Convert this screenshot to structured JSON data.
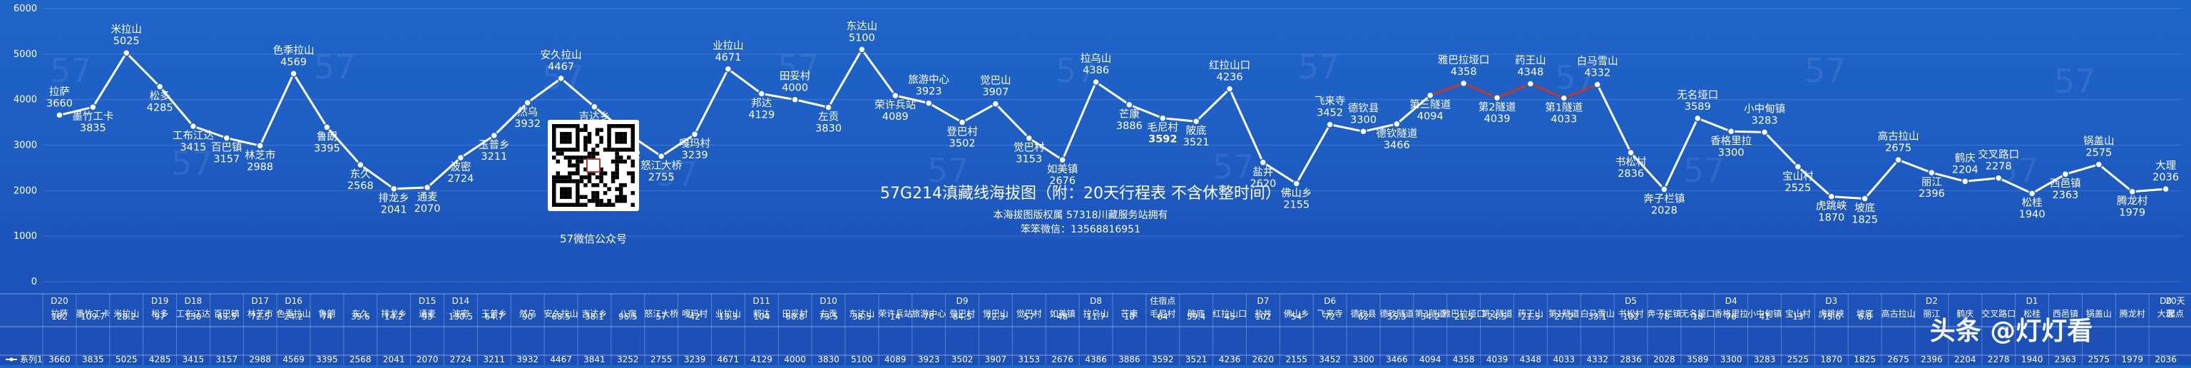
{
  "chart_data": {
    "type": "line",
    "title": "57G214滇藏线海拔图（附：20天行程表 不含休整时间）",
    "copyright": "本海拔图版权属 57318川藏服务站拥有",
    "wechat": "笨笨微信：13568816951",
    "qr_label": "57微信公众号",
    "watermark_text": "57",
    "corner_watermark": "头条 @灯灯看",
    "ylim": [
      0,
      6000
    ],
    "yticks": [
      "0",
      "1000",
      "2000",
      "3000",
      "4000",
      "5000",
      "6000"
    ],
    "legend": "系列1",
    "line_color": "#ffffff",
    "highlight_color": "#c0392b",
    "points": [
      {
        "label": "拉萨",
        "value": 3660,
        "col": "拉萨",
        "distance": "182",
        "day": "D20"
      },
      {
        "label": "墨竹工卡",
        "value": 3835,
        "col": "墨竹工卡",
        "distance": "109.7",
        "day": ""
      },
      {
        "label": "米拉山",
        "value": 5025,
        "col": "米拉山",
        "distance": "28.2",
        "day": ""
      },
      {
        "label": "松多",
        "value": 4285,
        "col": "松多",
        "distance": "97",
        "day": "D19"
      },
      {
        "label": "工布江达",
        "value": 3415,
        "col": "工布江达",
        "distance": "130",
        "day": "D18"
      },
      {
        "label": "百巴镇",
        "value": 3157,
        "col": "百巴镇",
        "distance": "63.5",
        "day": ""
      },
      {
        "label": "林芝市",
        "value": 2988,
        "col": "林芝市",
        "distance": "72.5",
        "day": "D17"
      },
      {
        "label": "色季拉山",
        "value": 4569,
        "col": "色季拉山",
        "distance": "24.2",
        "day": "D16"
      },
      {
        "label": "鲁朗",
        "value": 3395,
        "col": "鲁朗",
        "distance": "74",
        "day": ""
      },
      {
        "label": "东久",
        "value": 2568,
        "col": "东久",
        "distance": "39.6",
        "day": ""
      },
      {
        "label": "排龙乡",
        "value": 2041,
        "col": "排龙乡",
        "distance": "14.2",
        "day": ""
      },
      {
        "label": "通麦",
        "value": 2070,
        "col": "通麦",
        "distance": "93",
        "day": "D15"
      },
      {
        "label": "波密",
        "value": 2724,
        "col": "波密",
        "distance": "130.5",
        "day": "D14"
      },
      {
        "label": "玉普乡",
        "value": 3211,
        "col": "玉普乡",
        "distance": "64.7",
        "day": ""
      },
      {
        "label": "然乌",
        "value": 3932,
        "col": "然乌",
        "distance": "90",
        "day": ""
      },
      {
        "label": "安久拉山",
        "value": 4467,
        "col": "安久拉山",
        "distance": "68.5",
        "day": ""
      },
      {
        "label": "吉达乡",
        "value": 3841,
        "col": "吉达乡",
        "distance": "38.1",
        "day": ""
      },
      {
        "label": "八宿",
        "value": 3252,
        "col": "八宿",
        "distance": "96.5",
        "day": ""
      },
      {
        "label": "怒江大桥",
        "value": 2755,
        "col": "怒江大桥",
        "distance": "57",
        "day": ""
      },
      {
        "label": "嘎玛村",
        "value": 3239,
        "col": "嘎玛村",
        "distance": "42",
        "day": ""
      },
      {
        "label": "业拉山",
        "value": 4671,
        "col": "业拉山",
        "distance": "13.3",
        "day": ""
      },
      {
        "label": "邦达",
        "value": 4129,
        "col": "邦达",
        "distance": "104",
        "day": "D11"
      },
      {
        "label": "田妥村",
        "value": 4000,
        "col": "田妥村",
        "distance": "60.8",
        "day": ""
      },
      {
        "label": "左贡",
        "value": 3830,
        "col": "左贡",
        "distance": "73.5",
        "day": "D10"
      },
      {
        "label": "东达山",
        "value": 5100,
        "col": "东达山",
        "distance": "38.5",
        "day": ""
      },
      {
        "label": "荣许兵站",
        "value": 4089,
        "col": "荣许兵站",
        "distance": "14",
        "day": ""
      },
      {
        "label": "旅游中心",
        "value": 3923,
        "col": "旅游中心",
        "distance": "76",
        "day": ""
      },
      {
        "label": "登巴村",
        "value": 3502,
        "col": "登巴村",
        "distance": "84.5",
        "day": "D9"
      },
      {
        "label": "觉巴山",
        "value": 3907,
        "col": "觉巴山",
        "distance": "72.3",
        "day": ""
      },
      {
        "label": "觉巴村",
        "value": 3153,
        "col": "觉巴村",
        "distance": "57",
        "day": ""
      },
      {
        "label": "如美镇",
        "value": 2676,
        "col": "如美镇",
        "distance": "48",
        "day": ""
      },
      {
        "label": "拉乌山",
        "value": 4386,
        "col": "拉乌山",
        "distance": "11.7",
        "day": "D8"
      },
      {
        "label": "芒康",
        "value": 3886,
        "col": "芒康",
        "distance": "10",
        "day": ""
      },
      {
        "label": "毛尼村",
        "value": 3592,
        "col": "毛尼村",
        "distance": "64",
        "day": "住宿点"
      },
      {
        "label": "陂底",
        "value": 3521,
        "col": "陂底",
        "distance": "59.4",
        "day": ""
      },
      {
        "label": "红拉山口",
        "value": 4236,
        "col": "红拉山口",
        "distance": "45",
        "day": ""
      },
      {
        "label": "盐井",
        "value": 2620,
        "col": "盐井",
        "distance": "102",
        "day": "D7"
      },
      {
        "label": "佛山乡",
        "value": 2155,
        "col": "佛山乡",
        "distance": "54",
        "day": ""
      },
      {
        "label": "飞来寺",
        "value": 3452,
        "col": "飞来寺",
        "distance": "72",
        "day": "D6"
      },
      {
        "label": "德钦县",
        "value": 3300,
        "col": "德钦县",
        "distance": "62",
        "day": ""
      },
      {
        "label": "德钦隧道",
        "value": 3466,
        "col": "德钦隧道",
        "distance": "55.3",
        "day": ""
      },
      {
        "label": "第三隧道",
        "value": 4094,
        "col": "第3隧道",
        "distance": "34.2",
        "day": ""
      },
      {
        "label": "雅巴拉垭口",
        "value": 4358,
        "col": "雅巴拉垭口",
        "distance": "21.5",
        "day": ""
      },
      {
        "label": "第2隧道",
        "value": 4039,
        "col": "第2隧道",
        "distance": "24.5",
        "day": ""
      },
      {
        "label": "药王山",
        "value": 4348,
        "col": "药王山",
        "distance": "21.5",
        "day": ""
      },
      {
        "label": "第1隧道",
        "value": 4033,
        "col": "第1隧道",
        "distance": "27.2",
        "day": ""
      },
      {
        "label": "白马雪山",
        "value": 4332,
        "col": "白马雪山",
        "distance": "33.1",
        "day": ""
      },
      {
        "label": "书松村",
        "value": 2836,
        "col": "书松村",
        "distance": "102",
        "day": "D5"
      },
      {
        "label": "奔子栏镇",
        "value": 2028,
        "col": "奔子栏镇",
        "distance": "78",
        "day": ""
      },
      {
        "label": "无名垭口",
        "value": 3589,
        "col": "无名垭口",
        "distance": "18",
        "day": ""
      },
      {
        "label": "香格里拉",
        "value": 3300,
        "col": "香格里拉",
        "distance": "76",
        "day": "D4"
      },
      {
        "label": "小中甸镇",
        "value": 3283,
        "col": "小中甸镇",
        "distance": "41",
        "day": ""
      },
      {
        "label": "宝山村",
        "value": 2525,
        "col": "宝山村",
        "distance": "13",
        "day": ""
      },
      {
        "label": "虎跳峡",
        "value": 1870,
        "col": "虎跳峡",
        "distance": "75.6",
        "day": "D3"
      },
      {
        "label": "坡底",
        "value": 1825,
        "col": "坡底",
        "distance": "6.8",
        "day": ""
      },
      {
        "label": "高古拉山",
        "value": 2675,
        "col": "高古拉山",
        "distance": "",
        "day": ""
      },
      {
        "label": "丽江",
        "value": 2396,
        "col": "丽江",
        "distance": "",
        "day": "D2"
      },
      {
        "label": "鹤庆",
        "value": 2204,
        "col": "鹤庆",
        "distance": "",
        "day": ""
      },
      {
        "label": "交叉路口",
        "value": 2278,
        "col": "交叉路口",
        "distance": "",
        "day": ""
      },
      {
        "label": "松桂",
        "value": 1940,
        "col": "松桂",
        "distance": "",
        "day": "D1"
      },
      {
        "label": "西邑镇",
        "value": 2363,
        "col": "西邑镇",
        "distance": "",
        "day": ""
      },
      {
        "label": "锅盖山",
        "value": 2575,
        "col": "锅盖山",
        "distance": "",
        "day": ""
      },
      {
        "label": "腾龙村",
        "value": 1979,
        "col": "腾龙村",
        "distance": "",
        "day": ""
      },
      {
        "label": "大理",
        "value": 2036,
        "col": "大理",
        "distance": "",
        "day": "D0"
      }
    ],
    "end_day": "20天",
    "end_col": "起点"
  }
}
